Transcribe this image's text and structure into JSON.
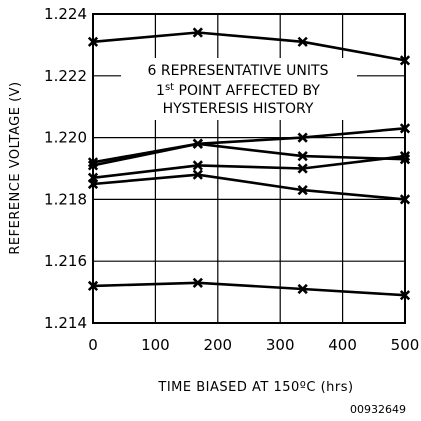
{
  "chart_data": {
    "type": "line",
    "xlabel": "TIME BIASED AT 150ºC (hrs)",
    "ylabel": "REFERENCE VOLTAGE (V)",
    "xlim": [
      0,
      500
    ],
    "ylim": [
      1.214,
      1.224
    ],
    "xticks": [
      "0",
      "100",
      "200",
      "300",
      "400",
      "500"
    ],
    "yticks": [
      "1.214",
      "1.216",
      "1.218",
      "1.220",
      "1.222",
      "1.224"
    ],
    "grid": true,
    "marker": "x",
    "annotation": {
      "line1": "6 REPRESENTATIVE UNITS",
      "line2_prefix": "1",
      "line2_sup": "st",
      "line2_suffix": " POINT AFFECTED BY",
      "line3": "HYSTERESIS HISTORY"
    },
    "figure_id": "00932649",
    "series": [
      {
        "x": [
          0,
          168,
          336,
          500
        ],
        "y": [
          1.2231,
          1.2234,
          1.2231,
          1.2225
        ]
      },
      {
        "x": [
          0,
          168,
          336,
          500
        ],
        "y": [
          1.2192,
          1.2198,
          1.22,
          1.2203
        ]
      },
      {
        "x": [
          0,
          168,
          336,
          500
        ],
        "y": [
          1.2191,
          1.2198,
          1.2194,
          1.2193
        ]
      },
      {
        "x": [
          0,
          168,
          336,
          500
        ],
        "y": [
          1.2187,
          1.2191,
          1.219,
          1.2194
        ]
      },
      {
        "x": [
          0,
          168,
          336,
          500
        ],
        "y": [
          1.2185,
          1.2188,
          1.2183,
          1.218
        ]
      },
      {
        "x": [
          0,
          168,
          336,
          500
        ],
        "y": [
          1.2152,
          1.2153,
          1.2151,
          1.2149
        ]
      }
    ]
  }
}
